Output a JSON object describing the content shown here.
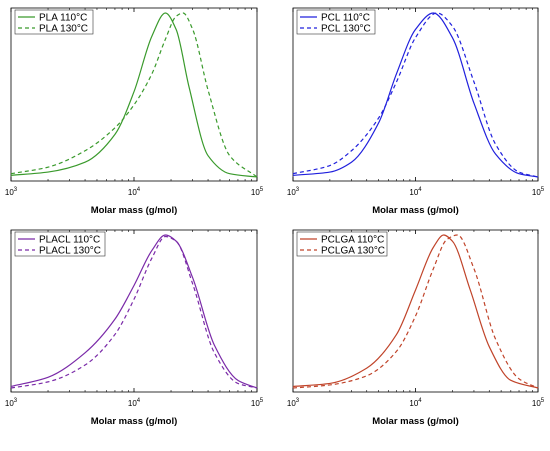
{
  "chart_data": [
    {
      "type": "line",
      "title": "",
      "xlabel": "Molar mass (g/mol)",
      "ylabel": "",
      "xscale": "log",
      "xlim": [
        1000,
        100000
      ],
      "x_ticks": [
        {
          "base": "10",
          "exp": "3"
        },
        {
          "base": "10",
          "exp": "4"
        },
        {
          "base": "10",
          "exp": "5"
        }
      ],
      "legend_position": "top-left",
      "color": "#3a9a2c",
      "series": [
        {
          "name": "PLA 110°C",
          "dash": "solid",
          "x": [
            1000,
            2000,
            4000,
            7000,
            10000,
            14000,
            18000,
            22000,
            28000,
            40000,
            60000,
            100000
          ],
          "y": [
            0.01,
            0.03,
            0.09,
            0.26,
            0.52,
            0.86,
            1.0,
            0.9,
            0.55,
            0.13,
            0.02,
            0.0
          ]
        },
        {
          "name": "PLA 130°C",
          "dash": "dashed",
          "x": [
            1000,
            2000,
            4000,
            7000,
            10000,
            14000,
            18000,
            22000,
            25000,
            30000,
            40000,
            60000,
            100000
          ],
          "y": [
            0.02,
            0.06,
            0.16,
            0.3,
            0.44,
            0.63,
            0.84,
            0.98,
            1.0,
            0.9,
            0.53,
            0.13,
            0.0
          ]
        }
      ]
    },
    {
      "type": "line",
      "title": "",
      "xlabel": "Molar mass (g/mol)",
      "ylabel": "",
      "xscale": "log",
      "xlim": [
        1000,
        100000
      ],
      "x_ticks": [
        {
          "base": "10",
          "exp": "3"
        },
        {
          "base": "10",
          "exp": "4"
        },
        {
          "base": "10",
          "exp": "5"
        }
      ],
      "legend_position": "top-left",
      "color": "#2020dd",
      "series": [
        {
          "name": "PCL 110°C",
          "dash": "solid",
          "x": [
            1000,
            2000,
            3000,
            5000,
            7000,
            10000,
            14000,
            20000,
            30000,
            45000,
            70000,
            100000
          ],
          "y": [
            0.01,
            0.03,
            0.09,
            0.33,
            0.63,
            0.9,
            1.0,
            0.85,
            0.45,
            0.14,
            0.02,
            0.0
          ]
        },
        {
          "name": "PCL 130°C",
          "dash": "dashed",
          "x": [
            1000,
            2000,
            3000,
            5000,
            7000,
            10000,
            15000,
            20000,
            30000,
            45000,
            70000,
            100000
          ],
          "y": [
            0.02,
            0.07,
            0.16,
            0.36,
            0.58,
            0.85,
            1.0,
            0.92,
            0.58,
            0.2,
            0.03,
            0.0
          ]
        }
      ]
    },
    {
      "type": "line",
      "title": "",
      "xlabel": "Molar mass (g/mol)",
      "ylabel": "",
      "xscale": "log",
      "xlim": [
        1000,
        100000
      ],
      "x_ticks": [
        {
          "base": "10",
          "exp": "3"
        },
        {
          "base": "10",
          "exp": "4"
        },
        {
          "base": "10",
          "exp": "5"
        }
      ],
      "legend_position": "top-left",
      "color": "#7a2aa8",
      "series": [
        {
          "name": "PLACL 110°C",
          "dash": "solid",
          "x": [
            1000,
            2000,
            4000,
            7000,
            10000,
            14000,
            18000,
            22000,
            30000,
            45000,
            70000,
            100000
          ],
          "y": [
            0.01,
            0.07,
            0.23,
            0.45,
            0.67,
            0.9,
            1.0,
            0.96,
            0.72,
            0.28,
            0.05,
            0.0
          ]
        },
        {
          "name": "PLACL 130°C",
          "dash": "dashed",
          "x": [
            1000,
            2000,
            4000,
            7000,
            10000,
            14000,
            18000,
            22000,
            30000,
            45000,
            70000,
            100000
          ],
          "y": [
            0.0,
            0.04,
            0.15,
            0.35,
            0.58,
            0.85,
            0.99,
            0.96,
            0.68,
            0.23,
            0.03,
            0.0
          ]
        }
      ]
    },
    {
      "type": "line",
      "title": "",
      "xlabel": "Molar mass (g/mol)",
      "ylabel": "",
      "xscale": "log",
      "xlim": [
        1000,
        100000
      ],
      "x_ticks": [
        {
          "base": "10",
          "exp": "3"
        },
        {
          "base": "10",
          "exp": "4"
        },
        {
          "base": "10",
          "exp": "5"
        }
      ],
      "legend_position": "top-left",
      "color": "#c0442a",
      "series": [
        {
          "name": "PCLGA 110°C",
          "dash": "solid",
          "x": [
            1000,
            2000,
            4000,
            7000,
            10000,
            14000,
            17000,
            20000,
            28000,
            40000,
            60000,
            100000
          ],
          "y": [
            0.01,
            0.03,
            0.13,
            0.35,
            0.64,
            0.92,
            1.0,
            0.96,
            0.64,
            0.27,
            0.05,
            0.0
          ]
        },
        {
          "name": "PCLGA 130°C",
          "dash": "dashed",
          "x": [
            1000,
            2000,
            4000,
            7000,
            10000,
            14000,
            18000,
            22000,
            30000,
            45000,
            70000,
            100000
          ],
          "y": [
            0.0,
            0.02,
            0.08,
            0.24,
            0.47,
            0.78,
            0.97,
            1.0,
            0.78,
            0.32,
            0.06,
            0.0
          ]
        }
      ]
    }
  ]
}
